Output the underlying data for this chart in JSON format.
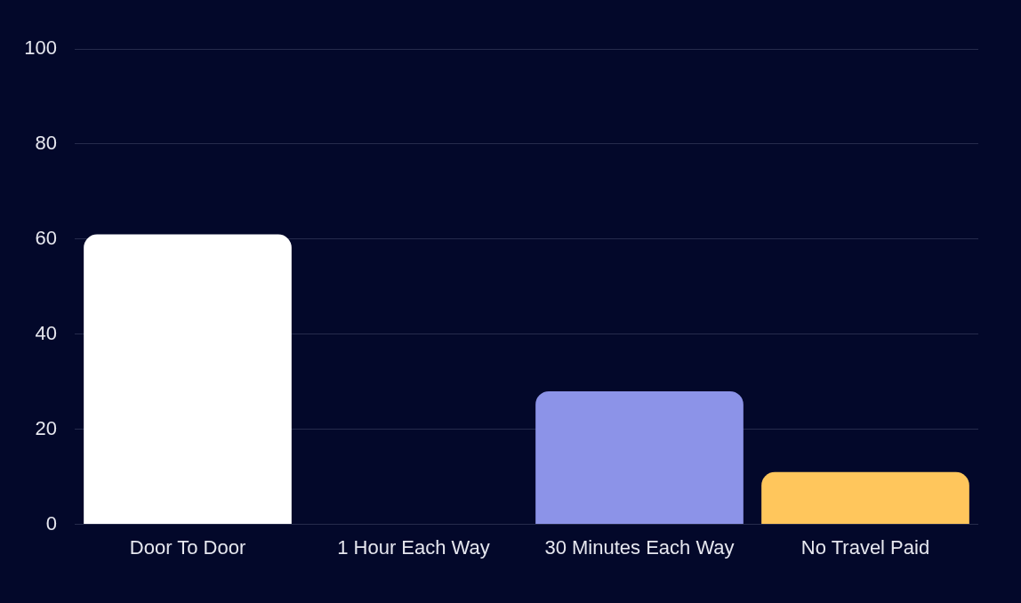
{
  "chart_data": {
    "type": "bar",
    "categories": [
      "Door To Door",
      "1 Hour Each Way",
      "30 Minutes Each Way",
      "No Travel Paid"
    ],
    "values": [
      61,
      0,
      28,
      11
    ],
    "colors": [
      "#ffffff",
      "#8c93e8",
      "#8c93e8",
      "#ffc65c"
    ],
    "ylim": [
      0,
      100
    ],
    "yticks": [
      0,
      20,
      40,
      60,
      80,
      100
    ],
    "grid": "y",
    "legend": false
  }
}
